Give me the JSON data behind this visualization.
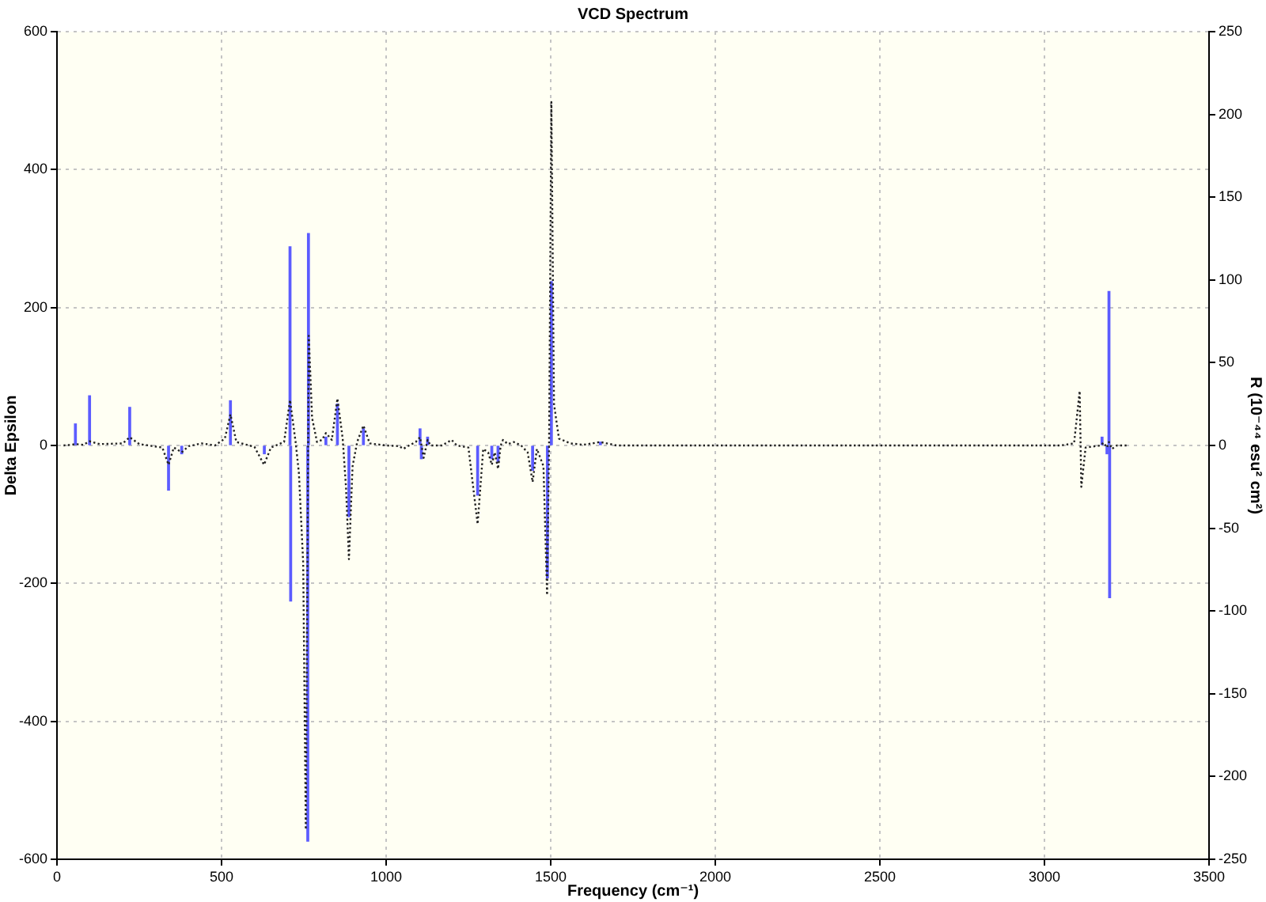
{
  "chart_data": {
    "type": "line",
    "title": "VCD Spectrum",
    "xlabel": "Frequency (cm⁻¹)",
    "ylabel": "Delta Epsilon",
    "y2label": "R (10⁻⁴⁴ esu² cm²)",
    "xlim": [
      0,
      3500
    ],
    "xticks": [
      0,
      500,
      1000,
      1500,
      2000,
      2500,
      3000,
      3500
    ],
    "ylim": [
      -600,
      600
    ],
    "yticks": [
      -600,
      -400,
      -200,
      0,
      200,
      400,
      600
    ],
    "y2lim": [
      -250,
      250
    ],
    "y2ticks": [
      -250,
      -200,
      -150,
      -100,
      -50,
      0,
      50,
      100,
      150,
      200,
      250
    ],
    "grid": true,
    "marker": "none",
    "line_style": "dotted",
    "series": [
      {
        "color": "#222222",
        "x": [
          20,
          45,
          56,
          80,
          99,
          130,
          200,
          221,
          250,
          320,
          339,
          355,
          379,
          400,
          440,
          480,
          510,
          527,
          545,
          600,
          629,
          650,
          690,
          708,
          725,
          735,
          748,
          756,
          765,
          775,
          790,
          805,
          817,
          835,
          852,
          868,
          878,
          887,
          898,
          912,
          931,
          950,
          1000,
          1040,
          1052,
          1070,
          1090,
          1103,
          1114,
          1126,
          1135,
          1170,
          1199,
          1215,
          1250,
          1278,
          1295,
          1310,
          1321,
          1330,
          1340,
          1348,
          1355,
          1370,
          1388,
          1410,
          1430,
          1445,
          1458,
          1478,
          1489,
          1495,
          1502,
          1510,
          1525,
          1560,
          1600,
          1651,
          1700,
          2500,
          3050,
          3090,
          3107,
          3112,
          3125,
          3170,
          3180,
          3190,
          3196,
          3205,
          3220,
          3257
        ],
        "values": [
          0,
          1,
          2,
          1,
          6,
          2,
          3,
          12,
          2,
          -3,
          -28,
          -3,
          -10,
          -1,
          3,
          0,
          10,
          45,
          5,
          -2,
          -28,
          -3,
          5,
          66,
          5,
          -40,
          -170,
          -557,
          159,
          40,
          5,
          8,
          18,
          8,
          68,
          10,
          -60,
          -165,
          -30,
          5,
          29,
          3,
          0,
          -1,
          -5,
          0,
          5,
          12,
          -18,
          8,
          0,
          0,
          8,
          0,
          -3,
          -114,
          -5,
          -10,
          -28,
          -10,
          -34,
          0,
          8,
          2,
          5,
          0,
          -10,
          -53,
          -5,
          -30,
          -217,
          0,
          498,
          60,
          10,
          3,
          1,
          5,
          0,
          0,
          0,
          3,
          79,
          -60,
          -3,
          0,
          4,
          -3,
          5,
          -5,
          0,
          0
        ]
      },
      {
        "type": "bar",
        "axis": "y2",
        "color": "#5c5cff",
        "x": [
          56,
          99,
          221,
          339,
          379,
          527,
          630,
          708,
          710,
          762,
          764,
          817,
          852,
          887,
          931,
          1103,
          1107,
          1126,
          1278,
          1321,
          1340,
          1445,
          1490,
          1502,
          1651,
          3175,
          3190,
          3196,
          3198
        ],
        "values": [
          13,
          30,
          23,
          -27,
          -5,
          27,
          -5,
          120,
          -94,
          -239,
          128,
          5,
          25,
          -43,
          10,
          10,
          -8,
          5,
          -30,
          -8,
          -10,
          -15,
          -80,
          99,
          2,
          5,
          -5,
          93,
          -92
        ]
      }
    ]
  }
}
